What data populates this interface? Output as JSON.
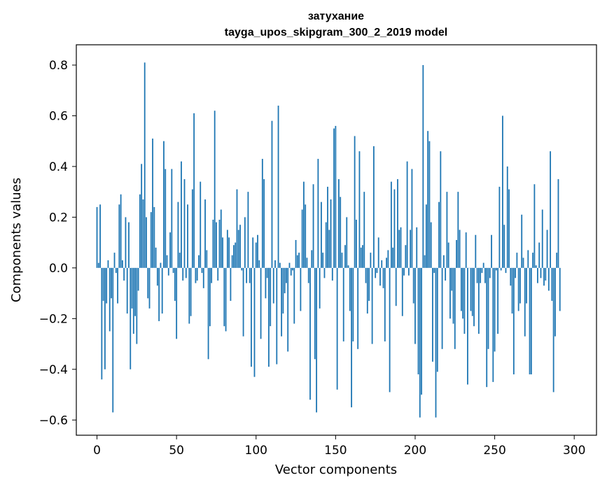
{
  "chart_data": {
    "type": "bar",
    "title": "затухание",
    "subtitle": "tayga_upos_skipgram_300_2_2019 model",
    "xlabel": "Vector components",
    "ylabel": "Components values",
    "xlim": [
      -13,
      314
    ],
    "ylim": [
      -0.66,
      0.88
    ],
    "x_ticks": [
      0,
      50,
      100,
      150,
      200,
      250,
      300
    ],
    "x_tick_labels": [
      "0",
      "50",
      "100",
      "150",
      "200",
      "250",
      "300"
    ],
    "y_ticks": [
      -0.6,
      -0.4,
      -0.2,
      0.0,
      0.2,
      0.4,
      0.6,
      0.8
    ],
    "y_tick_labels": [
      "−0.6",
      "−0.4",
      "−0.2",
      "0.0",
      "0.2",
      "0.4",
      "0.6",
      "0.8"
    ],
    "bar_color": "#1f77b4",
    "grid": false,
    "values": [
      0.24,
      0.02,
      0.25,
      -0.44,
      -0.13,
      -0.4,
      -0.14,
      0.03,
      -0.25,
      -0.12,
      -0.57,
      0.06,
      -0.02,
      -0.14,
      0.25,
      0.29,
      0.03,
      -0.05,
      0.2,
      -0.18,
      0.18,
      -0.4,
      -0.16,
      -0.26,
      -0.19,
      -0.3,
      -0.09,
      0.29,
      0.41,
      0.27,
      0.81,
      0.2,
      -0.12,
      -0.16,
      0.22,
      0.51,
      0.24,
      0.08,
      -0.07,
      -0.21,
      0.02,
      -0.18,
      0.5,
      0.39,
      0.05,
      -0.03,
      0.14,
      0.39,
      -0.02,
      -0.13,
      -0.28,
      0.26,
      0.06,
      0.42,
      -0.05,
      0.35,
      -0.04,
      0.25,
      -0.22,
      -0.19,
      0.31,
      0.61,
      -0.06,
      -0.05,
      0.05,
      0.34,
      -0.02,
      -0.08,
      0.27,
      0.07,
      -0.36,
      -0.23,
      -0.06,
      0.19,
      0.62,
      0.18,
      -0.05,
      0.19,
      0.23,
      0.12,
      -0.23,
      -0.25,
      0.15,
      0.12,
      -0.13,
      0.05,
      0.09,
      0.1,
      0.31,
      0.15,
      0.17,
      -0.01,
      -0.27,
      0.2,
      -0.06,
      0.3,
      -0.06,
      -0.39,
      0.12,
      -0.43,
      0.1,
      0.13,
      0.03,
      -0.28,
      0.43,
      0.35,
      -0.12,
      -0.04,
      -0.39,
      -0.23,
      0.58,
      -0.14,
      0.03,
      -0.38,
      0.64,
      0.02,
      -0.27,
      -0.18,
      -0.1,
      -0.06,
      -0.33,
      0.02,
      -0.03,
      -0.01,
      -0.22,
      0.11,
      0.05,
      0.06,
      -0.17,
      0.23,
      0.34,
      0.25,
      0.04,
      -0.06,
      -0.52,
      0.07,
      0.33,
      -0.36,
      -0.57,
      0.43,
      -0.16,
      0.26,
      0.06,
      -0.04,
      0.18,
      0.32,
      0.15,
      0.27,
      -0.05,
      0.55,
      0.56,
      -0.48,
      0.35,
      0.28,
      0.06,
      -0.29,
      0.09,
      0.2,
      0.01,
      -0.17,
      -0.55,
      -0.29,
      0.52,
      0.19,
      -0.32,
      0.46,
      0.08,
      0.09,
      0.3,
      -0.06,
      -0.18,
      -0.13,
      0.06,
      -0.3,
      0.48,
      -0.04,
      -0.02,
      0.12,
      -0.07,
      0.03,
      -0.08,
      -0.29,
      0.04,
      0.07,
      -0.49,
      0.34,
      0.08,
      0.31,
      -0.15,
      0.35,
      0.15,
      0.16,
      -0.19,
      -0.03,
      0.09,
      0.42,
      -0.03,
      0.15,
      0.39,
      -0.14,
      -0.3,
      0.16,
      -0.42,
      -0.59,
      -0.5,
      0.8,
      0.05,
      0.25,
      0.54,
      0.5,
      0.18,
      -0.37,
      -0.02,
      -0.59,
      -0.41,
      0.26,
      0.46,
      -0.32,
      0.05,
      -0.05,
      0.3,
      0.1,
      -0.2,
      -0.09,
      -0.22,
      -0.32,
      0.11,
      0.3,
      0.15,
      -0.17,
      -0.2,
      -0.26,
      0.14,
      -0.46,
      0.0,
      -0.17,
      -0.19,
      -0.23,
      0.13,
      -0.06,
      -0.26,
      -0.06,
      -0.02,
      0.02,
      -0.06,
      -0.47,
      -0.32,
      -0.04,
      0.13,
      -0.45,
      -0.33,
      -0.01,
      -0.26,
      0.32,
      -0.01,
      0.6,
      0.17,
      -0.02,
      0.4,
      0.31,
      -0.07,
      -0.18,
      -0.42,
      -0.04,
      0.06,
      -0.17,
      -0.14,
      0.21,
      0.04,
      -0.27,
      -0.14,
      0.07,
      -0.42,
      -0.42,
      0.06,
      0.33,
      0.01,
      -0.06,
      0.1,
      -0.04,
      0.23,
      -0.07,
      -0.05,
      0.15,
      -0.09,
      0.46,
      -0.13,
      -0.49,
      -0.27,
      0.06,
      0.35,
      -0.17
    ]
  }
}
